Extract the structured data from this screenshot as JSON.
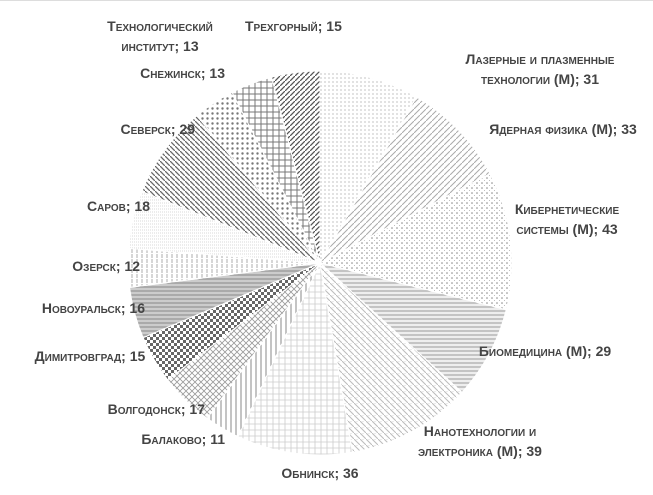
{
  "chart_data": {
    "type": "pie",
    "categories": [
      "Лазерные и плазменные технологии (М); 31",
      "Ядерная физика (М); 33",
      "Кибернетические системы (М); 43",
      "Биомедицина (М); 29",
      "Нанотехнологии и электроника (М); 39",
      "Обнинск; 36",
      "Балаково; 11",
      "Волгодонск; 17",
      "Димитровград; 15",
      "Новоуральск; 16",
      "Озерск; 12",
      "Саров; 18",
      "Северск; 29",
      "Снежинск; 13",
      "Технологический институт; 13",
      "Трехгорный; 15"
    ],
    "values": [
      31,
      33,
      43,
      29,
      39,
      36,
      11,
      17,
      15,
      16,
      12,
      18,
      29,
      13,
      13,
      15
    ]
  }
}
